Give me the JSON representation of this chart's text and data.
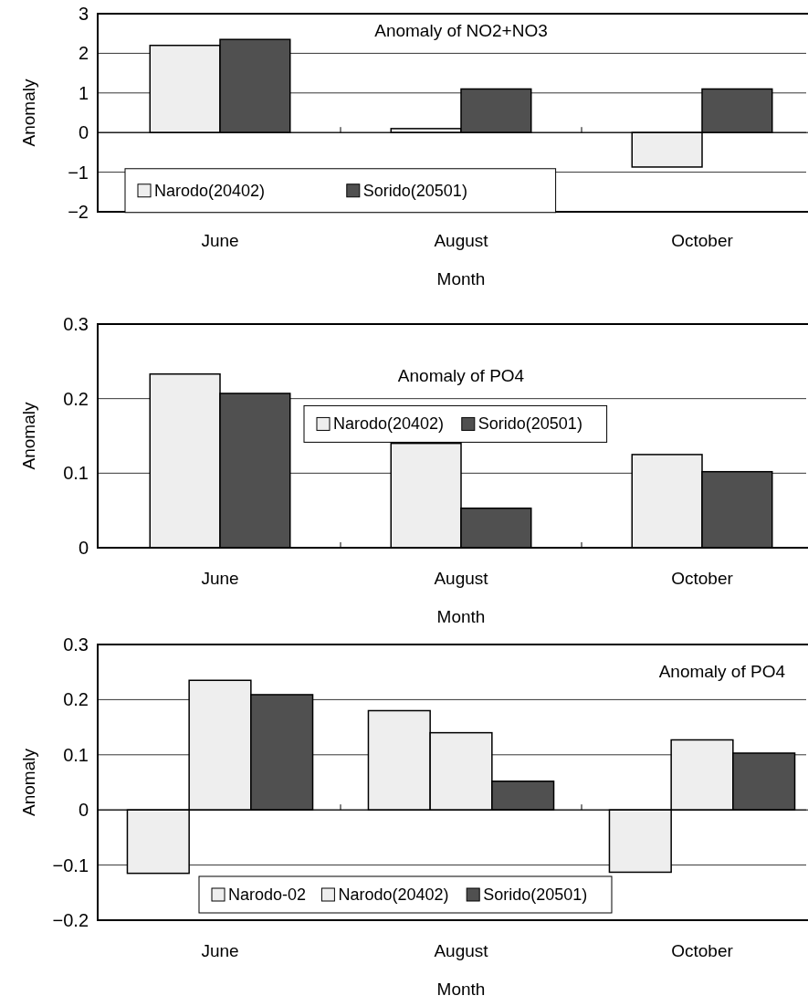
{
  "chart_data": [
    {
      "type": "bar",
      "title": "Anomaly of NO2+NO3",
      "xlabel": "Month",
      "ylabel": "Anomaly",
      "categories": [
        "June",
        "August",
        "October"
      ],
      "ylim": [
        -2,
        3
      ],
      "yticks": [
        {
          "value": -2,
          "label": "−2"
        },
        {
          "value": -1,
          "label": "−1"
        },
        0,
        1,
        2,
        3
      ],
      "grid": "y",
      "legend": "bottom left",
      "series": [
        {
          "name": "Narodo(20402)",
          "color": "#eeeeee",
          "values": [
            2.2,
            0.1,
            -0.87
          ]
        },
        {
          "name": "Sorido(20501)",
          "color": "#505050",
          "values": [
            2.35,
            1.1,
            1.1
          ]
        }
      ]
    },
    {
      "type": "bar",
      "title": "Anomaly of PO4",
      "xlabel": "Month",
      "ylabel": "Anomaly",
      "categories": [
        "June",
        "August",
        "October"
      ],
      "ylim": [
        0,
        0.3
      ],
      "yticks": [
        0,
        0.1,
        0.2,
        0.3
      ],
      "grid": "y",
      "legend": "top",
      "series": [
        {
          "name": "Narodo(20402)",
          "color": "#eeeeee",
          "values": [
            0.233,
            0.14,
            0.125
          ]
        },
        {
          "name": "Sorido(20501)",
          "color": "#505050",
          "values": [
            0.207,
            0.053,
            0.102
          ]
        }
      ]
    },
    {
      "type": "bar",
      "title": "Anomaly of PO4",
      "xlabel": "Month",
      "ylabel": "Anomaly",
      "categories": [
        "June",
        "August",
        "October"
      ],
      "ylim": [
        -0.2,
        0.3
      ],
      "yticks": [
        {
          "value": -0.2,
          "label": "−0.2"
        },
        {
          "value": -0.1,
          "label": "−0.1"
        },
        0,
        0.1,
        0.2,
        0.3
      ],
      "grid": "y",
      "legend": "bottom",
      "series": [
        {
          "name": "Narodo-02",
          "color": "#eeeeee",
          "values": [
            -0.115,
            0.18,
            -0.113
          ]
        },
        {
          "name": "Narodo(20402)",
          "color": "#eeeeee",
          "values": [
            0.235,
            0.14,
            0.127
          ]
        },
        {
          "name": "Sorido(20501)",
          "color": "#505050",
          "values": [
            0.209,
            0.052,
            0.103
          ]
        }
      ]
    }
  ]
}
